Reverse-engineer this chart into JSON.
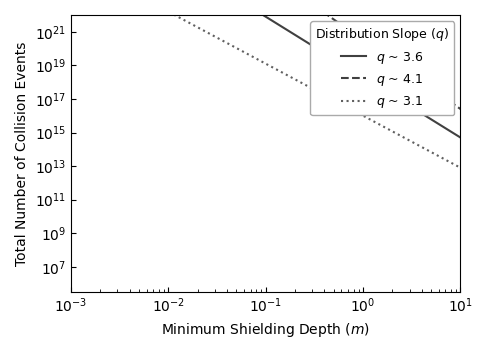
{
  "title": "",
  "xlabel": "Minimum Shielding Depth ($m$)",
  "ylabel": "Total Number of Collision Events",
  "xlim_log": [
    -3,
    1
  ],
  "ylim_log": [
    5.5,
    22.0
  ],
  "lines": [
    {
      "label": "$q$ ~ 3.6",
      "style": "solid",
      "color": "#404040",
      "q": 3.6,
      "log_intercept": 18.3,
      "lw": 1.5
    },
    {
      "label": "$q$ ~ 4.1",
      "style": "dashed",
      "color": "#404040",
      "q": 4.1,
      "log_intercept": 20.5,
      "lw": 1.5
    },
    {
      "label": "$q$ ~ 3.1",
      "style": "dotted",
      "color": "#606060",
      "q": 3.1,
      "log_intercept": 16.0,
      "lw": 1.5
    }
  ],
  "legend_title": "Distribution Slope ($q$)",
  "legend_loc": "upper right",
  "background_color": "#ffffff",
  "spine_color": "#000000",
  "tick_color": "#000000",
  "grid": false
}
